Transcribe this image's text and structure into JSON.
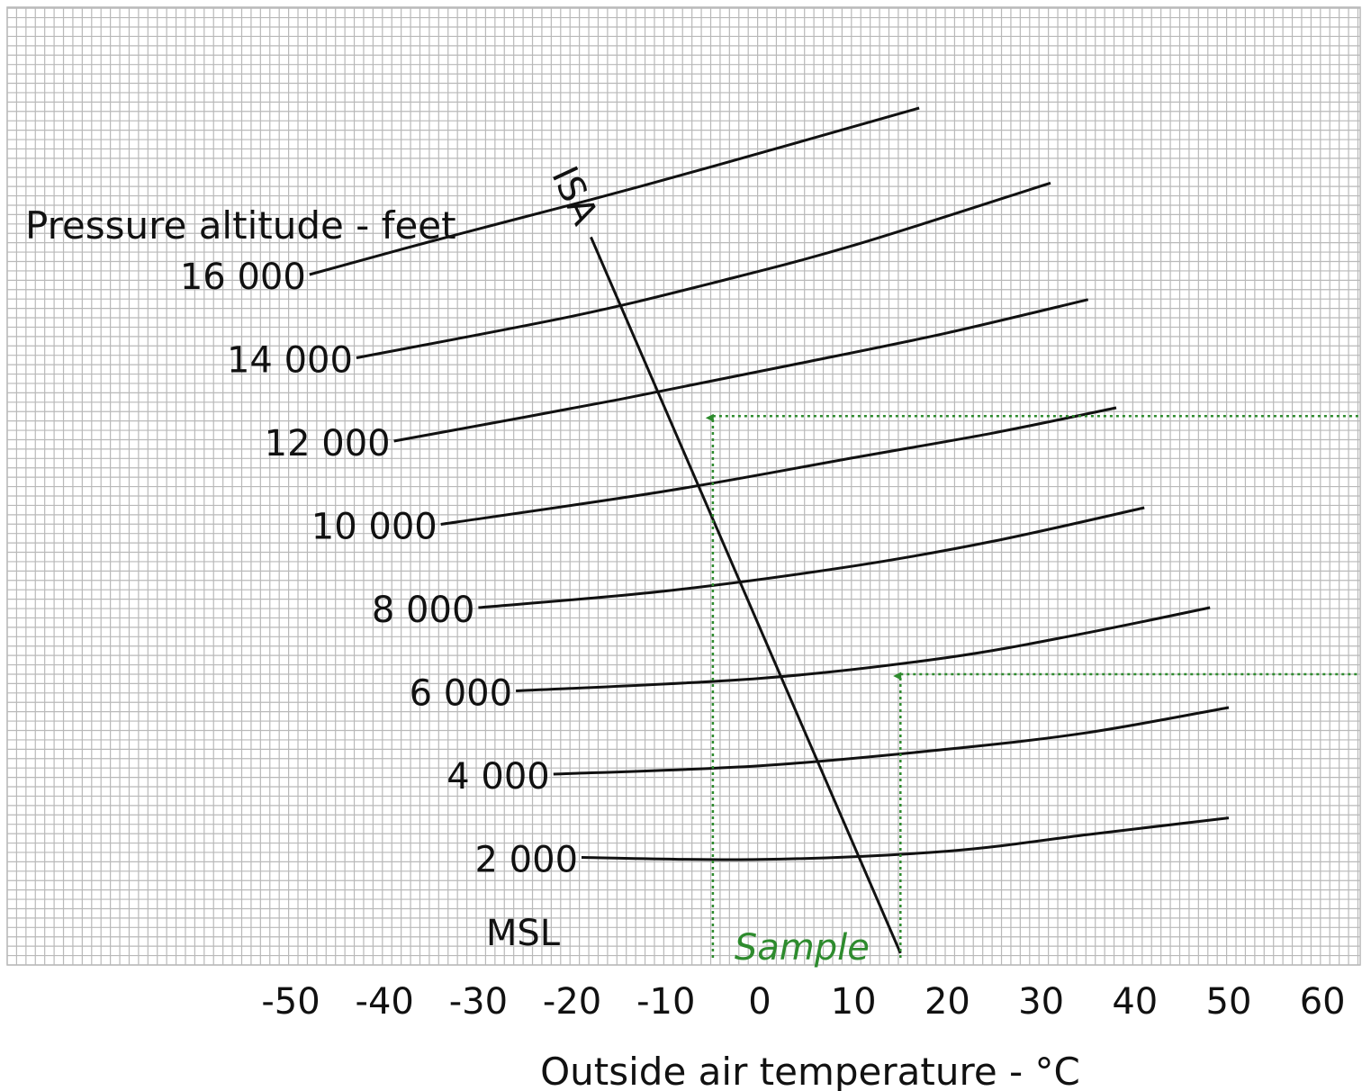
{
  "chart_data": {
    "type": "line",
    "ylabel": "Pressure altitude - feet",
    "xlabel": "Outside air temperature - °C",
    "x_ticks": [
      "-50",
      "-40",
      "-30",
      "-20",
      "-10",
      "0",
      "10",
      "20",
      "30",
      "40",
      "50",
      "60"
    ],
    "xlim": [
      -54,
      63
    ],
    "grid": true,
    "altitude_lines": [
      {
        "label": "16 000",
        "points": [
          [
            -48,
            16000
          ],
          [
            -35,
            16800
          ],
          [
            -18,
            17800
          ],
          [
            -5,
            18600
          ],
          [
            17,
            20000
          ]
        ]
      },
      {
        "label": "14 000",
        "points": [
          [
            -43,
            14000
          ],
          [
            -20,
            15000
          ],
          [
            -5,
            15800
          ],
          [
            10,
            16700
          ],
          [
            31,
            18200
          ]
        ]
      },
      {
        "label": "12 000",
        "points": [
          [
            -39,
            12000
          ],
          [
            -15,
            13000
          ],
          [
            5,
            13900
          ],
          [
            20,
            14600
          ],
          [
            35,
            15400
          ]
        ]
      },
      {
        "label": "10 000",
        "points": [
          [
            -34,
            10000
          ],
          [
            -10,
            10800
          ],
          [
            10,
            11600
          ],
          [
            25,
            12200
          ],
          [
            38,
            12800
          ]
        ]
      },
      {
        "label": "8 000",
        "points": [
          [
            -30,
            8000
          ],
          [
            -10,
            8400
          ],
          [
            10,
            9000
          ],
          [
            25,
            9600
          ],
          [
            41,
            10400
          ]
        ]
      },
      {
        "label": "6 000",
        "points": [
          [
            -26,
            6000
          ],
          [
            0,
            6300
          ],
          [
            20,
            6800
          ],
          [
            35,
            7400
          ],
          [
            48,
            8000
          ]
        ]
      },
      {
        "label": "4 000",
        "points": [
          [
            -22,
            4000
          ],
          [
            0,
            4200
          ],
          [
            20,
            4600
          ],
          [
            35,
            5000
          ],
          [
            50,
            5600
          ]
        ]
      },
      {
        "label": "2 000",
        "points": [
          [
            -19,
            2000
          ],
          [
            0,
            1950
          ],
          [
            20,
            2150
          ],
          [
            35,
            2550
          ],
          [
            50,
            2950
          ]
        ]
      }
    ],
    "msl_label": "MSL",
    "isa_line": {
      "label": "ISA",
      "points": [
        [
          -18,
          16900
        ],
        [
          15,
          -300
        ]
      ]
    },
    "sample": {
      "label": "Sample",
      "color": "#2e8b2e",
      "paths": [
        {
          "from_x": -5,
          "to_y": 12600
        },
        {
          "from_x": 15,
          "to_y": 6400
        }
      ]
    },
    "grid_color": "#b9b9b9",
    "line_color": "#111111"
  }
}
